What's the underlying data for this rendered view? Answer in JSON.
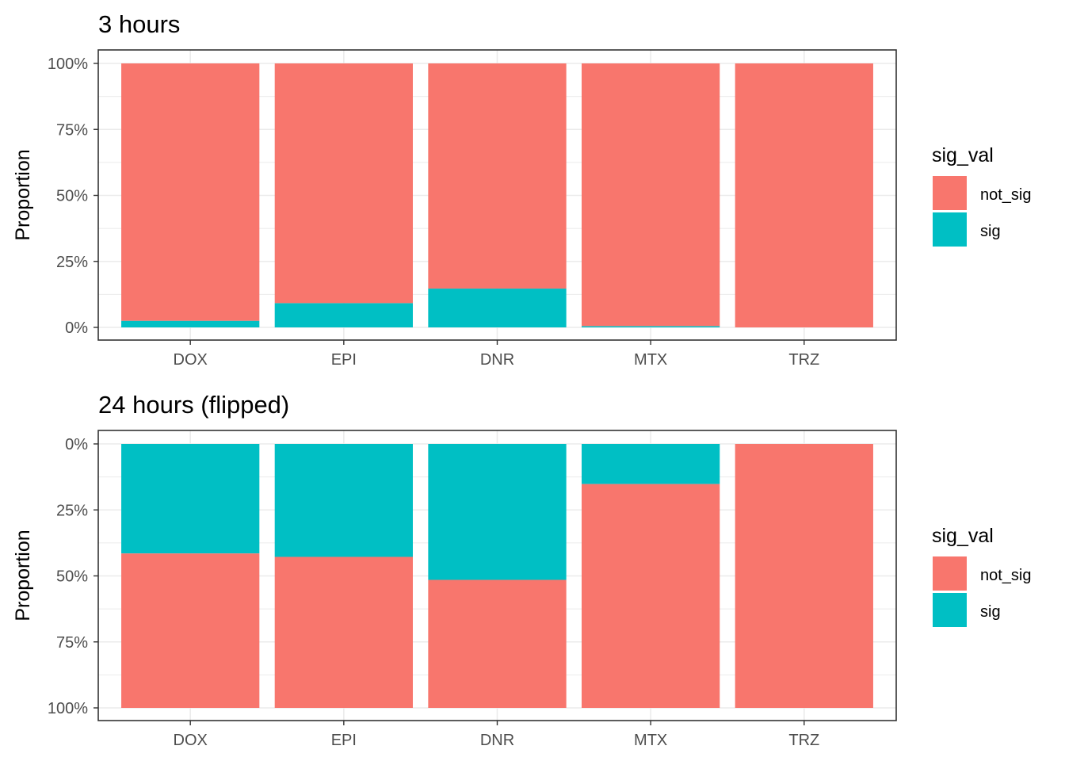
{
  "chart_data": [
    {
      "type": "bar",
      "stacked": true,
      "title": "3 hours",
      "xlabel": "",
      "ylabel": "Proportion",
      "categories": [
        "DOX",
        "EPI",
        "DNR",
        "MTX",
        "TRZ"
      ],
      "ylim": [
        0,
        1
      ],
      "y_reversed": false,
      "yticks": [
        0,
        0.25,
        0.5,
        0.75,
        1
      ],
      "yticklabels": [
        "0%",
        "25%",
        "50%",
        "75%",
        "100%"
      ],
      "series": [
        {
          "name": "not_sig",
          "color": "#F8766D",
          "values": [
            0.975,
            0.908,
            0.853,
            0.995,
            1.0
          ]
        },
        {
          "name": "sig",
          "color": "#00BFC4",
          "values": [
            0.025,
            0.092,
            0.147,
            0.005,
            0.0
          ]
        }
      ],
      "grid": true,
      "legend": {
        "title": "sig_val",
        "position": "right",
        "entries": [
          "not_sig",
          "sig"
        ]
      }
    },
    {
      "type": "bar",
      "stacked": true,
      "title": "24 hours (flipped)",
      "xlabel": "",
      "ylabel": "Proportion",
      "categories": [
        "DOX",
        "EPI",
        "DNR",
        "MTX",
        "TRZ"
      ],
      "ylim": [
        0,
        1
      ],
      "y_reversed": true,
      "yticks": [
        0,
        0.25,
        0.5,
        0.75,
        1
      ],
      "yticklabels": [
        "0%",
        "25%",
        "50%",
        "75%",
        "100%"
      ],
      "series": [
        {
          "name": "not_sig",
          "color": "#F8766D",
          "values": [
            0.585,
            0.572,
            0.485,
            0.848,
            1.0
          ]
        },
        {
          "name": "sig",
          "color": "#00BFC4",
          "values": [
            0.415,
            0.428,
            0.515,
            0.152,
            0.0
          ]
        }
      ],
      "grid": true,
      "legend": {
        "title": "sig_val",
        "position": "right",
        "entries": [
          "not_sig",
          "sig"
        ]
      }
    }
  ]
}
